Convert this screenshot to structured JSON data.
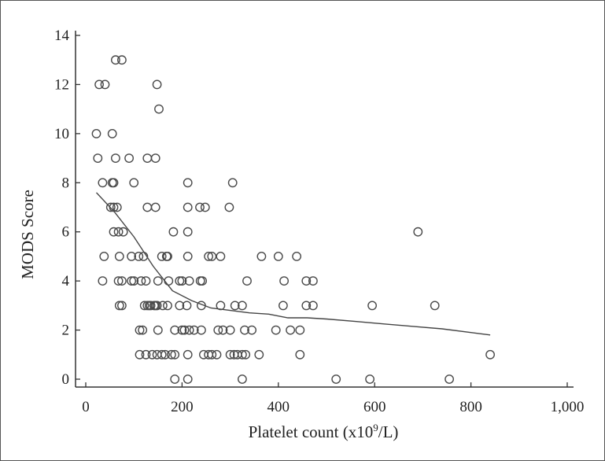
{
  "chart_data": {
    "type": "scatter",
    "xlabel": "Platelet count (x10",
    "xlabel_sup": "9",
    "xlabel_tail": "/L)",
    "ylabel": "MODS Score",
    "xlim": [
      0,
      1000
    ],
    "ylim": [
      0,
      14
    ],
    "xticks": [
      0,
      200,
      400,
      600,
      800,
      1000
    ],
    "xtick_labels": [
      "0",
      "200",
      "400",
      "600",
      "800",
      "1,000"
    ],
    "yticks": [
      0,
      2,
      4,
      6,
      8,
      10,
      12,
      14
    ],
    "ytick_labels": [
      "0",
      "2",
      "4",
      "6",
      "8",
      "10",
      "12",
      "14"
    ],
    "grid": false,
    "marker": "open-circle",
    "points": [
      [
        62,
        13
      ],
      [
        75,
        13
      ],
      [
        28,
        12
      ],
      [
        40,
        12
      ],
      [
        148,
        12
      ],
      [
        152,
        11
      ],
      [
        22,
        10
      ],
      [
        55,
        10
      ],
      [
        25,
        9
      ],
      [
        62,
        9
      ],
      [
        90,
        9
      ],
      [
        128,
        9
      ],
      [
        145,
        9
      ],
      [
        35,
        8
      ],
      [
        55,
        8
      ],
      [
        58,
        8
      ],
      [
        100,
        8
      ],
      [
        212,
        8
      ],
      [
        305,
        8
      ],
      [
        52,
        7
      ],
      [
        58,
        7
      ],
      [
        65,
        7
      ],
      [
        128,
        7
      ],
      [
        145,
        7
      ],
      [
        212,
        7
      ],
      [
        237,
        7
      ],
      [
        248,
        7
      ],
      [
        298,
        7
      ],
      [
        58,
        6
      ],
      [
        68,
        6
      ],
      [
        78,
        6
      ],
      [
        182,
        6
      ],
      [
        212,
        6
      ],
      [
        690,
        6
      ],
      [
        38,
        5
      ],
      [
        70,
        5
      ],
      [
        95,
        5
      ],
      [
        110,
        5
      ],
      [
        120,
        5
      ],
      [
        158,
        5
      ],
      [
        168,
        5
      ],
      [
        170,
        5
      ],
      [
        212,
        5
      ],
      [
        255,
        5
      ],
      [
        262,
        5
      ],
      [
        280,
        5
      ],
      [
        365,
        5
      ],
      [
        400,
        5
      ],
      [
        438,
        5
      ],
      [
        35,
        4
      ],
      [
        68,
        4
      ],
      [
        75,
        4
      ],
      [
        95,
        4
      ],
      [
        100,
        4
      ],
      [
        115,
        4
      ],
      [
        125,
        4
      ],
      [
        150,
        4
      ],
      [
        172,
        4
      ],
      [
        195,
        4
      ],
      [
        200,
        4
      ],
      [
        215,
        4
      ],
      [
        238,
        4
      ],
      [
        242,
        4
      ],
      [
        335,
        4
      ],
      [
        412,
        4
      ],
      [
        458,
        4
      ],
      [
        472,
        4
      ],
      [
        70,
        3
      ],
      [
        75,
        3
      ],
      [
        122,
        3
      ],
      [
        128,
        3
      ],
      [
        132,
        3
      ],
      [
        135,
        3
      ],
      [
        142,
        3
      ],
      [
        145,
        3
      ],
      [
        148,
        3
      ],
      [
        160,
        3
      ],
      [
        170,
        3
      ],
      [
        195,
        3
      ],
      [
        210,
        3
      ],
      [
        240,
        3
      ],
      [
        280,
        3
      ],
      [
        310,
        3
      ],
      [
        325,
        3
      ],
      [
        410,
        3
      ],
      [
        458,
        3
      ],
      [
        472,
        3
      ],
      [
        595,
        3
      ],
      [
        725,
        3
      ],
      [
        112,
        2
      ],
      [
        118,
        2
      ],
      [
        150,
        2
      ],
      [
        185,
        2
      ],
      [
        200,
        2
      ],
      [
        205,
        2
      ],
      [
        215,
        2
      ],
      [
        225,
        2
      ],
      [
        240,
        2
      ],
      [
        275,
        2
      ],
      [
        285,
        2
      ],
      [
        300,
        2
      ],
      [
        330,
        2
      ],
      [
        345,
        2
      ],
      [
        395,
        2
      ],
      [
        425,
        2
      ],
      [
        445,
        2
      ],
      [
        112,
        1
      ],
      [
        125,
        1
      ],
      [
        138,
        1
      ],
      [
        148,
        1
      ],
      [
        158,
        1
      ],
      [
        165,
        1
      ],
      [
        178,
        1
      ],
      [
        185,
        1
      ],
      [
        212,
        1
      ],
      [
        245,
        1
      ],
      [
        255,
        1
      ],
      [
        262,
        1
      ],
      [
        272,
        1
      ],
      [
        300,
        1
      ],
      [
        308,
        1
      ],
      [
        315,
        1
      ],
      [
        325,
        1
      ],
      [
        332,
        1
      ],
      [
        360,
        1
      ],
      [
        445,
        1
      ],
      [
        840,
        1
      ],
      [
        185,
        0
      ],
      [
        212,
        0
      ],
      [
        325,
        0
      ],
      [
        520,
        0
      ],
      [
        590,
        0
      ],
      [
        755,
        0
      ]
    ],
    "trend_line": [
      [
        22,
        7.6
      ],
      [
        60,
        6.8
      ],
      [
        100,
        5.8
      ],
      [
        140,
        4.6
      ],
      [
        180,
        3.6
      ],
      [
        220,
        3.2
      ],
      [
        260,
        2.9
      ],
      [
        300,
        2.8
      ],
      [
        340,
        2.7
      ],
      [
        380,
        2.65
      ],
      [
        420,
        2.5
      ],
      [
        460,
        2.5
      ],
      [
        500,
        2.45
      ],
      [
        560,
        2.35
      ],
      [
        620,
        2.25
      ],
      [
        680,
        2.15
      ],
      [
        740,
        2.05
      ],
      [
        800,
        1.9
      ],
      [
        840,
        1.8
      ]
    ]
  }
}
